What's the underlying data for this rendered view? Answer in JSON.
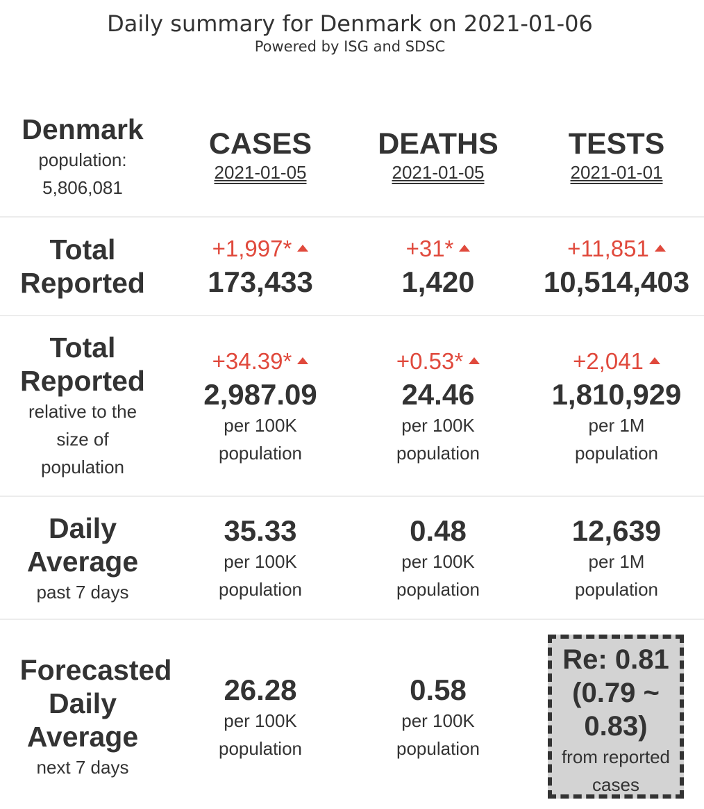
{
  "header": {
    "title": "Daily summary for Denmark on 2021-01-06",
    "subtitle": "Powered by ISG and SDSC"
  },
  "country": {
    "name": "Denmark",
    "population_label": "population:",
    "population_value": "5,806,081"
  },
  "columns": [
    {
      "name": "CASES",
      "date": "2021-01-05"
    },
    {
      "name": "DEATHS",
      "date": "2021-01-05"
    },
    {
      "name": "TESTS",
      "date": "2021-01-01"
    }
  ],
  "rows": {
    "total": {
      "label_line1": "Total",
      "label_line2": "Reported",
      "cells": [
        {
          "delta": "+1,997*",
          "value": "173,433"
        },
        {
          "delta": "+31*",
          "value": "1,420"
        },
        {
          "delta": "+11,851",
          "value": "10,514,403"
        }
      ]
    },
    "relative": {
      "label_line1": "Total",
      "label_line2": "Reported",
      "sub1": "relative to the",
      "sub2": "size of",
      "sub3": "population",
      "cells": [
        {
          "delta": "+34.39*",
          "value": "2,987.09",
          "unit1": "per 100K",
          "unit2": "population"
        },
        {
          "delta": "+0.53*",
          "value": "24.46",
          "unit1": "per 100K",
          "unit2": "population"
        },
        {
          "delta": "+2,041",
          "value": "1,810,929",
          "unit1": "per 1M",
          "unit2": "population"
        }
      ]
    },
    "daily": {
      "label_line1": "Daily",
      "label_line2": "Average",
      "sub": "past 7 days",
      "cells": [
        {
          "value": "35.33",
          "unit1": "per 100K",
          "unit2": "population"
        },
        {
          "value": "0.48",
          "unit1": "per 100K",
          "unit2": "population"
        },
        {
          "value": "12,639",
          "unit1": "per 1M",
          "unit2": "population"
        }
      ]
    },
    "forecast": {
      "label_line1": "Forecasted",
      "label_line2": "Daily",
      "label_line3": "Average",
      "sub": "next 7 days",
      "cells": [
        {
          "value": "26.28",
          "unit1": "per 100K",
          "unit2": "population"
        },
        {
          "value": "0.58",
          "unit1": "per 100K",
          "unit2": "population"
        }
      ],
      "re": {
        "line1": "Re: 0.81",
        "line2": "(0.79 ~",
        "line3": "0.83)",
        "sub1": "from reported",
        "sub2": "cases"
      }
    }
  },
  "colors": {
    "increase": "#e0493c",
    "text": "#333333",
    "re_box_bg": "#d3d3d3",
    "separator": "#ececec"
  },
  "icons": {
    "increase": "triangle-up-icon"
  }
}
